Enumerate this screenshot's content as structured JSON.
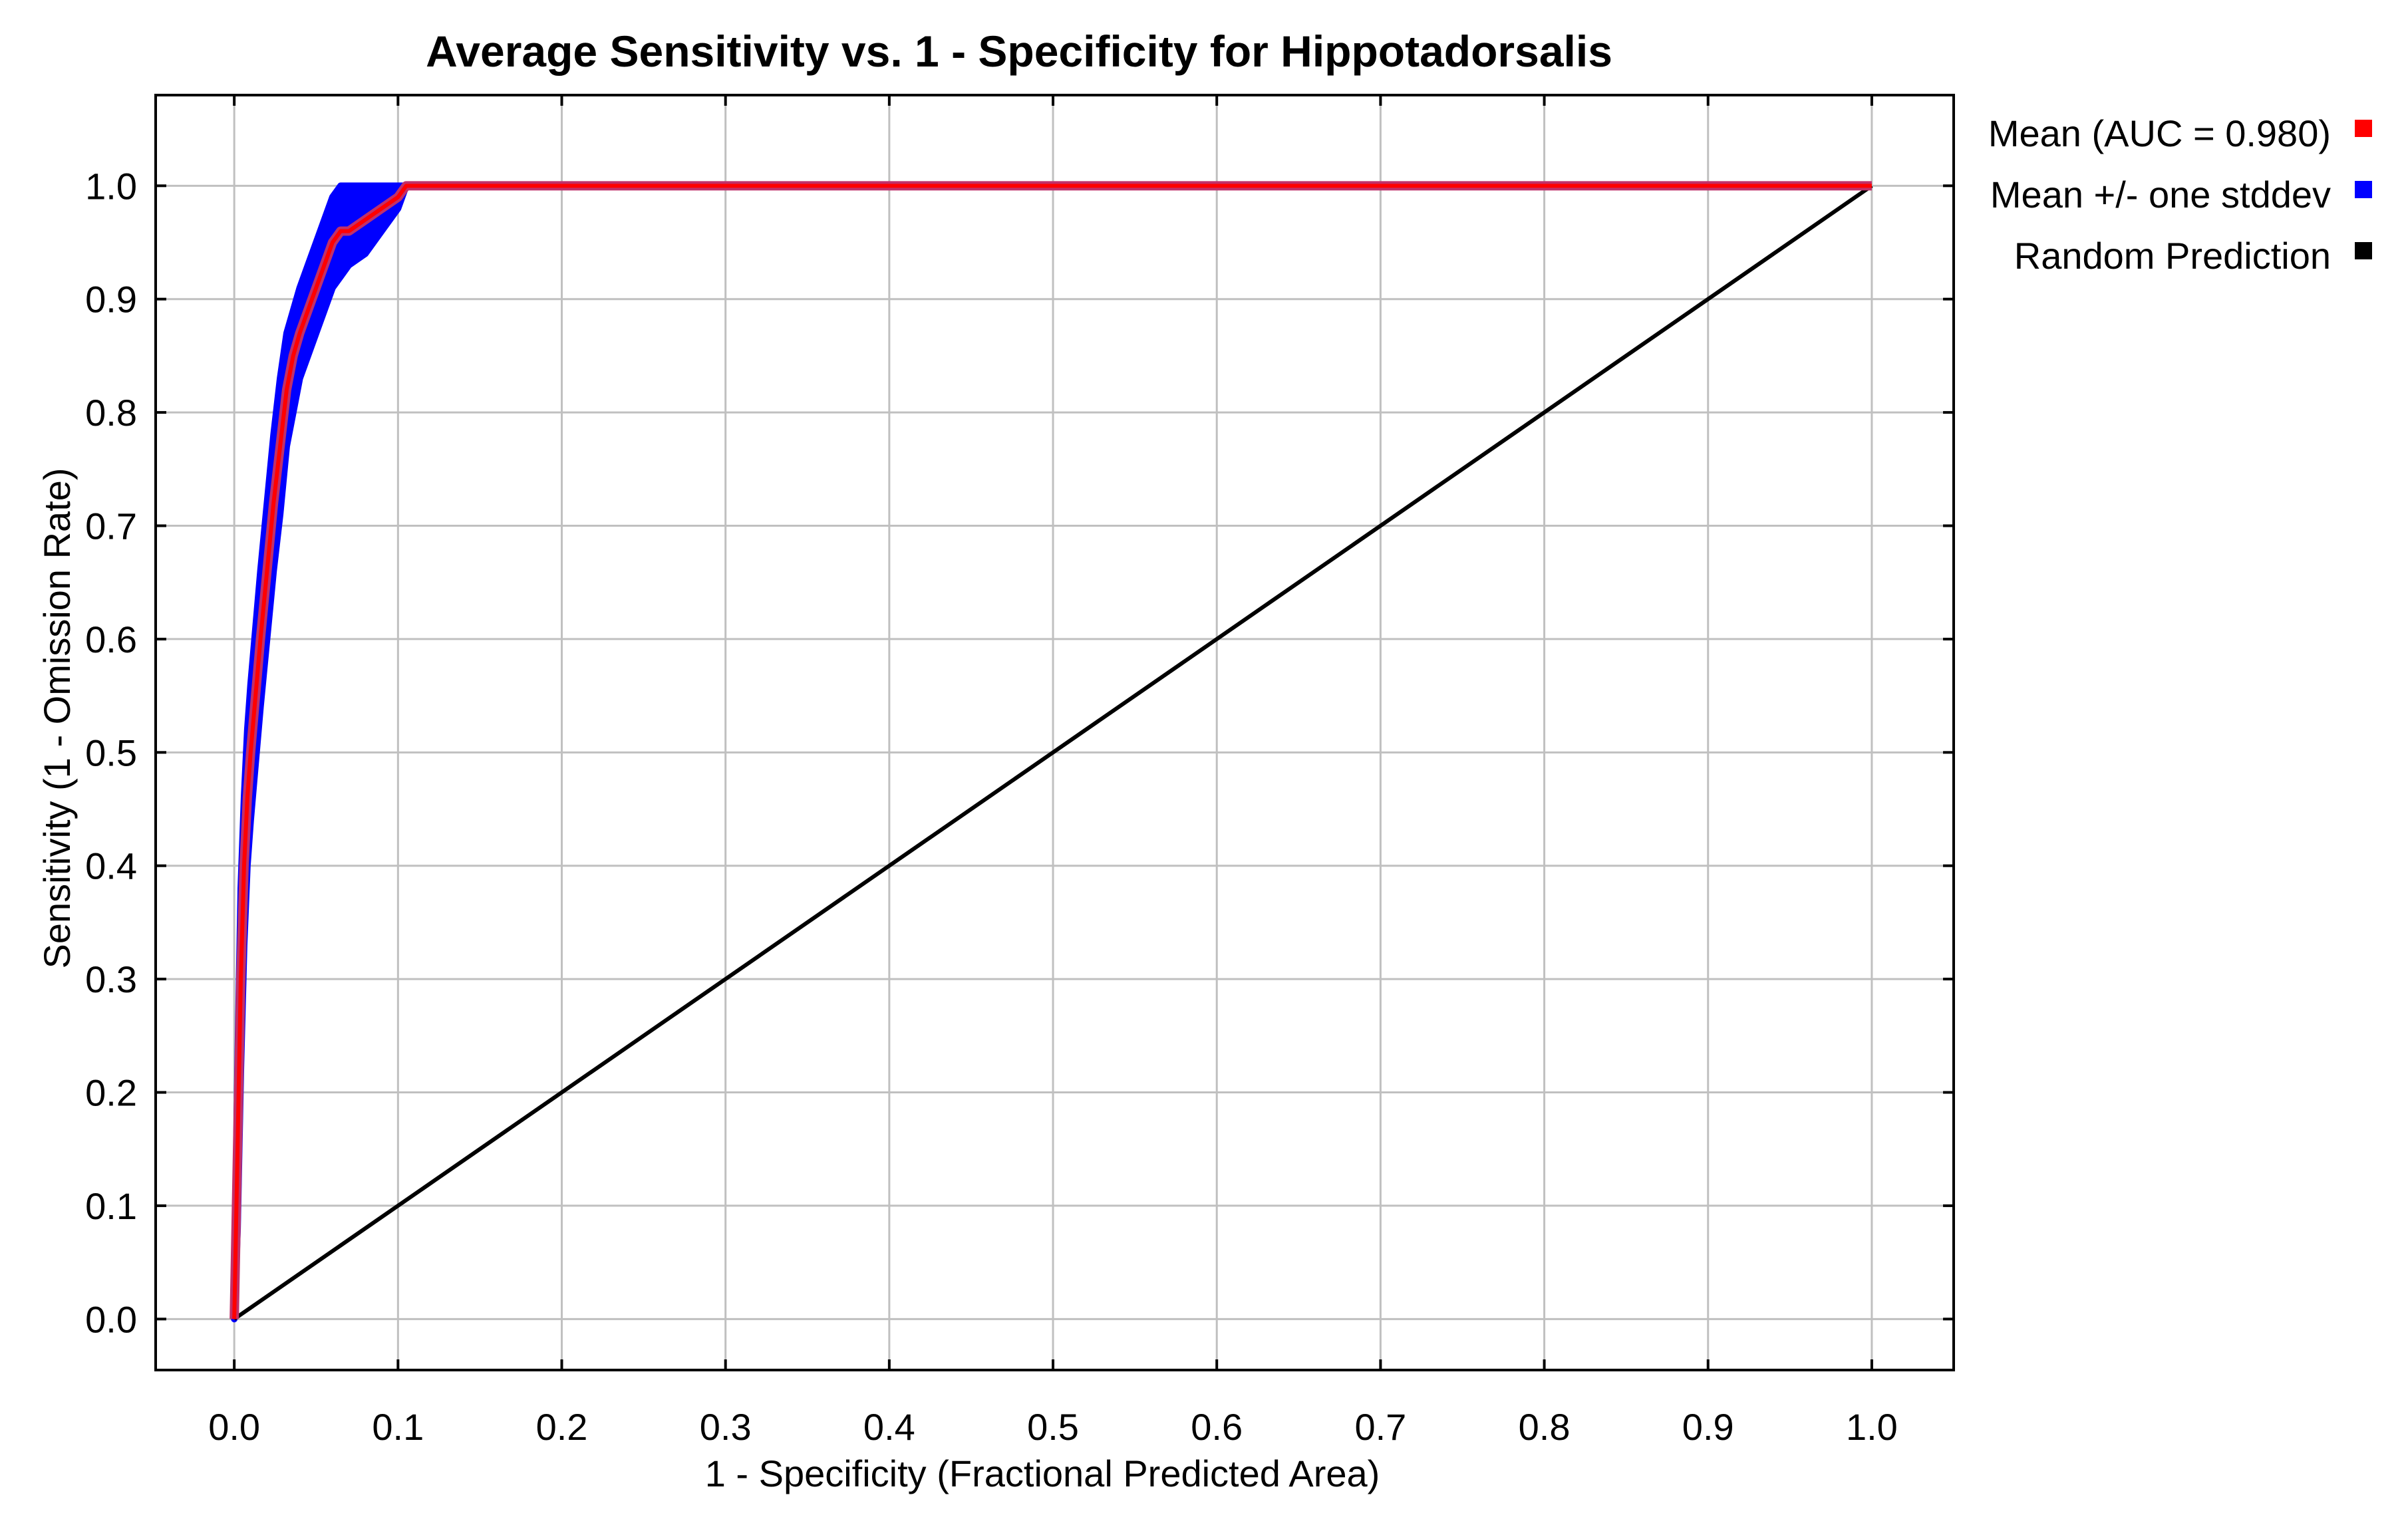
{
  "chart_data": {
    "type": "line",
    "title": "Average Sensitivity vs. 1 - Specificity for Hippotadorsalis",
    "xlabel": "1 - Specificity (Fractional Predicted Area)",
    "ylabel": "Sensitivity (1 - Omission Rate)",
    "xlim": [
      -0.048,
      1.05
    ],
    "ylim": [
      -0.045,
      1.08
    ],
    "xticks": [
      "0.0",
      "0.1",
      "0.2",
      "0.3",
      "0.4",
      "0.5",
      "0.6",
      "0.7",
      "0.8",
      "0.9",
      "1.0"
    ],
    "yticks": [
      "0.0",
      "0.1",
      "0.2",
      "0.3",
      "0.4",
      "0.5",
      "0.6",
      "0.7",
      "0.8",
      "0.9",
      "1.0"
    ],
    "grid": true,
    "legend_position": "outside-top-right",
    "series": [
      {
        "name": "Mean (AUC = 0.980)",
        "color": "#ff0000",
        "x": [
          0.0,
          0.002,
          0.004,
          0.006,
          0.008,
          0.01,
          0.013,
          0.016,
          0.02,
          0.024,
          0.028,
          0.032,
          0.036,
          0.04,
          0.045,
          0.05,
          0.055,
          0.06,
          0.065,
          0.07,
          0.08,
          0.09,
          0.1,
          0.105,
          1.0
        ],
        "y": [
          0.0,
          0.15,
          0.3,
          0.4,
          0.46,
          0.5,
          0.55,
          0.6,
          0.66,
          0.72,
          0.77,
          0.82,
          0.85,
          0.87,
          0.89,
          0.91,
          0.93,
          0.95,
          0.96,
          0.96,
          0.97,
          0.98,
          0.99,
          1.0,
          1.0
        ]
      },
      {
        "name": "Mean +/- one stddev",
        "color": "#0000ff",
        "x": [
          0.0,
          0.002,
          0.004,
          0.006,
          0.008,
          0.01,
          0.013,
          0.016,
          0.02,
          0.024,
          0.028,
          0.032,
          0.036,
          0.04,
          0.045,
          0.05,
          0.055,
          0.06,
          0.065,
          0.07,
          0.08,
          0.09,
          0.1,
          0.105
        ],
        "upper": [
          0.0,
          0.22,
          0.38,
          0.46,
          0.52,
          0.56,
          0.61,
          0.66,
          0.72,
          0.78,
          0.83,
          0.87,
          0.89,
          0.91,
          0.93,
          0.95,
          0.97,
          0.99,
          1.0,
          1.0,
          1.0,
          1.0,
          1.0,
          1.0
        ],
        "lower": [
          0.0,
          0.08,
          0.22,
          0.33,
          0.4,
          0.44,
          0.49,
          0.54,
          0.6,
          0.66,
          0.71,
          0.77,
          0.8,
          0.83,
          0.85,
          0.87,
          0.89,
          0.91,
          0.92,
          0.93,
          0.94,
          0.96,
          0.98,
          1.0
        ]
      },
      {
        "name": "Random Prediction",
        "color": "#000000",
        "x": [
          0.0,
          1.0
        ],
        "y": [
          0.0,
          1.0
        ]
      }
    ]
  }
}
